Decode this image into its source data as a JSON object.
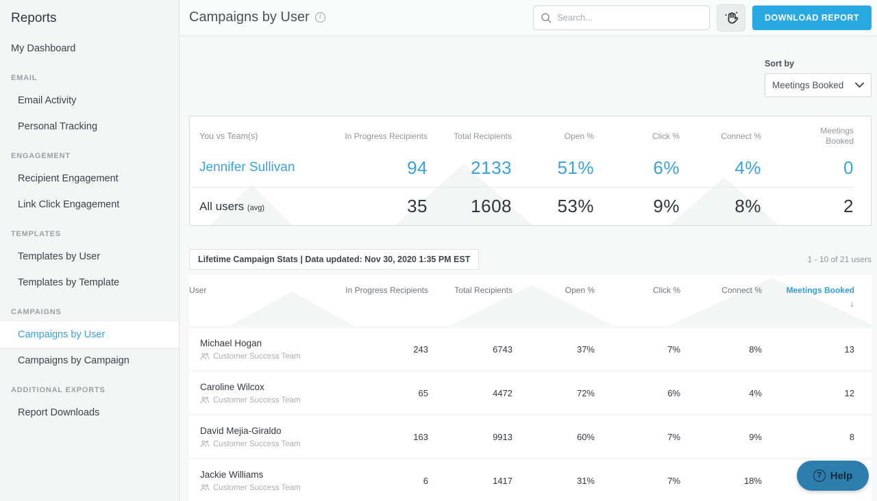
{
  "sidebar": {
    "title": "Reports",
    "dashboard_item": "My Dashboard",
    "sections": [
      {
        "label": "EMAIL",
        "items": [
          {
            "label": "Email Activity",
            "selected": false
          },
          {
            "label": "Personal Tracking",
            "selected": false
          }
        ]
      },
      {
        "label": "ENGAGEMENT",
        "items": [
          {
            "label": "Recipient Engagement",
            "selected": false
          },
          {
            "label": "Link Click Engagement",
            "selected": false
          }
        ]
      },
      {
        "label": "TEMPLATES",
        "items": [
          {
            "label": "Templates by User",
            "selected": false
          },
          {
            "label": "Templates by Template",
            "selected": false
          }
        ]
      },
      {
        "label": "CAMPAIGNS",
        "items": [
          {
            "label": "Campaigns by User",
            "selected": true
          },
          {
            "label": "Campaigns by Campaign",
            "selected": false
          }
        ]
      },
      {
        "label": "ADDITIONAL EXPORTS",
        "items": [
          {
            "label": "Report Downloads",
            "selected": false
          }
        ]
      }
    ]
  },
  "header": {
    "title": "Campaigns by User",
    "search_placeholder": "Search...",
    "download_label": "DOWNLOAD REPORT"
  },
  "sort": {
    "label": "Sort by",
    "value": "Meetings Booked"
  },
  "summary": {
    "first_col_header": "You vs Team(s)",
    "columns": [
      "In Progress Recipients",
      "Total Recipients",
      "Open %",
      "Click %",
      "Connect %",
      "Meetings Booked"
    ],
    "rows": [
      {
        "name": "Jennifer Sullivan",
        "name_suffix": "",
        "highlight": true,
        "values": [
          "94",
          "2133",
          "51%",
          "6%",
          "4%",
          "0"
        ]
      },
      {
        "name": "All users",
        "name_suffix": "(avg)",
        "highlight": false,
        "values": [
          "35",
          "1608",
          "53%",
          "9%",
          "8%",
          "2"
        ]
      }
    ]
  },
  "stats_bar": {
    "label": "Lifetime Campaign Stats | Data updated: Nov 30, 2020 1:35 PM EST",
    "pagination": "1 - 10 of 21 users"
  },
  "table": {
    "columns": [
      "User",
      "In Progress Recipients",
      "Total Recipients",
      "Open %",
      "Click %",
      "Connect %",
      "Meetings Booked"
    ],
    "sort_column": "Meetings Booked",
    "sort_arrow": "↓",
    "rows": [
      {
        "name": "Michael Hogan",
        "team": "Customer Success Team",
        "values": [
          "243",
          "6743",
          "37%",
          "7%",
          "8%",
          "13"
        ]
      },
      {
        "name": "Caroline Wilcox",
        "team": "Customer Success Team",
        "values": [
          "65",
          "4472",
          "72%",
          "6%",
          "4%",
          "12"
        ]
      },
      {
        "name": "David Mejia-Giraldo",
        "team": "Customer Success Team",
        "values": [
          "163",
          "9913",
          "60%",
          "7%",
          "9%",
          "8"
        ]
      },
      {
        "name": "Jackie Williams",
        "team": "Customer Success Team",
        "values": [
          "6",
          "1417",
          "31%",
          "7%",
          "18%",
          ""
        ]
      }
    ]
  },
  "help": {
    "label": "Help"
  },
  "colors": {
    "accent": "#3aa2da",
    "download_button": "#29a9e1",
    "help_bg": "#2d7ead",
    "sidebar_bg": "#f4f5f5"
  }
}
